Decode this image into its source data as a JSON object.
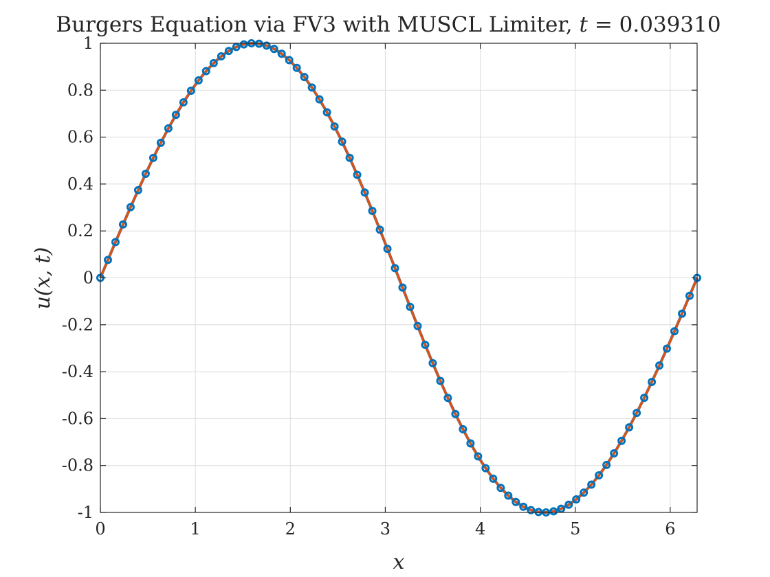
{
  "chart_data": {
    "type": "line",
    "title": "Burgers Equation via FV3 with MUSCL Limiter, t = 0.039310",
    "title_text": "Burgers Equation via FV3 with MUSCL Limiter, ",
    "title_var": "t",
    "title_eq": " = 0.039310",
    "xlabel": "x",
    "ylabel": "u(x, t)",
    "xlim": [
      0,
      6.2832
    ],
    "ylim": [
      -1,
      1
    ],
    "xticks": [
      0,
      1,
      2,
      3,
      4,
      5,
      6
    ],
    "xtick_labels": [
      "0",
      "1",
      "2",
      "3",
      "4",
      "5",
      "6"
    ],
    "yticks": [
      1,
      0.8,
      0.6,
      0.4,
      0.2,
      0,
      -0.2,
      -0.4,
      -0.6,
      -0.8,
      -1
    ],
    "ytick_labels": [
      "1",
      "0.8",
      "0.6",
      "0.4",
      "0.2",
      "0",
      "-0.2",
      "-0.4",
      "-0.6",
      "-0.8",
      "-1"
    ],
    "grid": true,
    "time": 0.03931,
    "series": [
      {
        "role": "numerical",
        "style": "line with circle markers",
        "color": "#0072BD",
        "n_points": 80,
        "x_range": [
          0,
          6.2832
        ],
        "values_formula": "u solves u = sin(x - u*t), t = 0.039310"
      },
      {
        "role": "reference",
        "style": "solid line",
        "color": "#D95319",
        "x_range": [
          0,
          6.2832
        ],
        "values_formula": "u solves u = sin(x - u*t), t = 0.039310"
      }
    ]
  }
}
